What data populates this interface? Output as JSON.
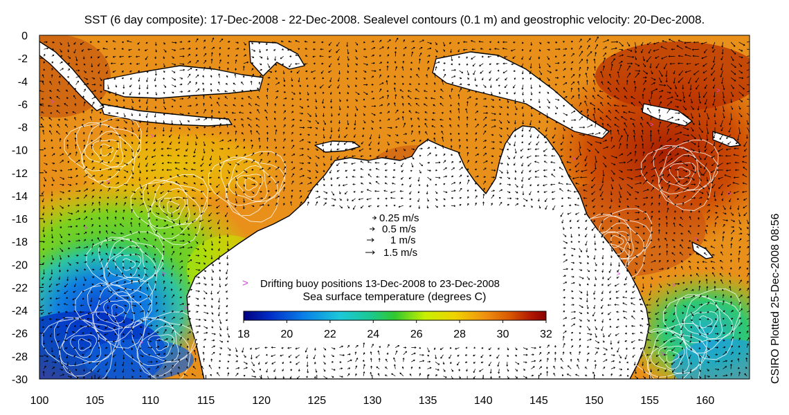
{
  "title": "SST (6 day composite): 17-Dec-2008 - 22-Dec-2008. Sealevel contours (0.1 m) and geostrophic velocity: 20-Dec-2008.",
  "side_credit": "CSIRO Plotted 25-Dec-2008 08:56",
  "map": {
    "lon_range": [
      100,
      164
    ],
    "lat_range": [
      -30,
      0
    ],
    "x_ticks": [
      100,
      105,
      110,
      115,
      120,
      125,
      130,
      135,
      140,
      145,
      150,
      155,
      160
    ],
    "y_ticks": [
      0,
      -2,
      -4,
      -6,
      -8,
      -10,
      -12,
      -14,
      -16,
      -18,
      -20,
      -22,
      -24,
      -26,
      -28,
      -30
    ],
    "x_tick_labels": [
      "100",
      "105",
      "110",
      "115",
      "120",
      "125",
      "130",
      "135",
      "140",
      "145",
      "150",
      "155",
      "160"
    ],
    "y_tick_labels": [
      "0",
      "-2",
      "-4",
      "-6",
      "-8",
      "-10",
      "-12",
      "-14",
      "-16",
      "-18",
      "-20",
      "-22",
      "-24",
      "-26",
      "-28",
      "-30"
    ],
    "land_color": "#ffffff",
    "coast_color": "#000000",
    "contour_color": "#ffffff",
    "vector_color": "#000000"
  },
  "velocity_legend": {
    "items": [
      {
        "speed": 0.25,
        "label": "0.25 m/s"
      },
      {
        "speed": 0.5,
        "label": "0.5 m/s"
      },
      {
        "speed": 1,
        "label": "1 m/s"
      },
      {
        "speed": 1.5,
        "label": "1.5 m/s"
      }
    ]
  },
  "buoy_legend": {
    "label": "Drifting buoy positions 13-Dec-2008 to 23-Dec-2008",
    "marker": ">",
    "color": "#e040e0"
  },
  "colorbar": {
    "title": "Sea surface temperature (degrees C)",
    "min": 18,
    "max": 32,
    "ticks": [
      18,
      20,
      22,
      24,
      26,
      28,
      30,
      32
    ],
    "tick_labels": [
      "18",
      "20",
      "22",
      "24",
      "26",
      "28",
      "30",
      "32"
    ],
    "colors": [
      "#00007f",
      "#0030c8",
      "#0a80e8",
      "#1cc8d8",
      "#1cc890",
      "#30c830",
      "#c8f000",
      "#f0d200",
      "#f09010",
      "#d85800",
      "#b01800",
      "#8a0000"
    ]
  }
}
